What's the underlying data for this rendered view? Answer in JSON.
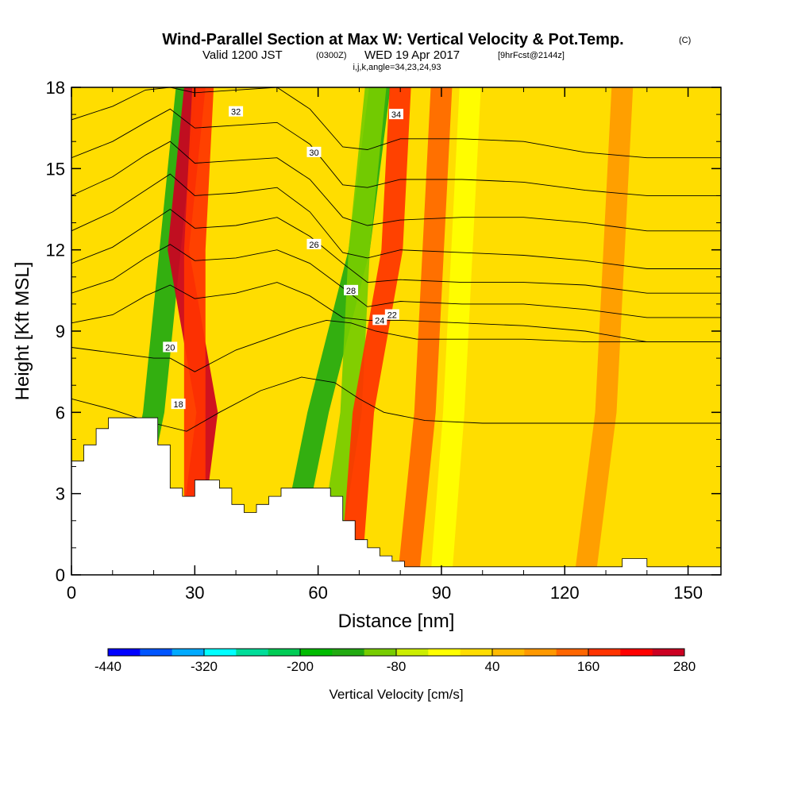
{
  "header": {
    "title": "Wind-Parallel Section at Max W: Vertical Velocity & Pot.Temp.",
    "copyright": "(C)",
    "valid_prefix": "Valid 1200 JST",
    "valid_utc": "(0300Z)",
    "valid_date": "WED 19 Apr 2017",
    "forecast": "[9hrFcst@2144z]",
    "indices": "i,j,k,angle=34,23,24,93"
  },
  "chart_data": {
    "type": "contour",
    "xlabel": "Distance [nm]",
    "ylabel": "Height [Kft MSL]",
    "xlim": [
      0,
      158
    ],
    "ylim": [
      0,
      18
    ],
    "x_ticks": [
      0,
      30,
      60,
      90,
      120,
      150
    ],
    "y_ticks": [
      0,
      3,
      6,
      9,
      12,
      15,
      18
    ],
    "colorbar": {
      "title": "Vertical Velocity [cm/s]",
      "min": -440,
      "step": 40,
      "labels": [
        "-440",
        "-320",
        "-200",
        "-80",
        "40",
        "160",
        "280"
      ],
      "colors": [
        "#0000ff",
        "#0055ff",
        "#00aaff",
        "#00ffff",
        "#00dd99",
        "#00cc55",
        "#00bb00",
        "#22aa11",
        "#77cc00",
        "#ccee00",
        "#ffff00",
        "#ffdd00",
        "#ffbb00",
        "#ff9900",
        "#ff6600",
        "#ff3300",
        "#ff0000",
        "#cc0022",
        "#aa0044",
        "#880066",
        "#660088"
      ]
    },
    "background_velocity": 20,
    "velocity_bands": [
      {
        "x": [
          12,
          20,
          24,
          28
        ],
        "velocity": -140
      },
      {
        "x": [
          28,
          33,
          26,
          30
        ],
        "velocity": 260
      },
      {
        "x": [
          30,
          30,
          30,
          32
        ],
        "velocity": 160
      },
      {
        "x": [
          52,
          60,
          70,
          75
        ],
        "velocity": -140
      },
      {
        "x": [
          62,
          68,
          70,
          74
        ],
        "velocity": -100
      },
      {
        "x": [
          68,
          71,
          78,
          80
        ],
        "velocity": 180
      },
      {
        "x": [
          82,
          86,
          88,
          90
        ],
        "velocity": 120
      },
      {
        "x": [
          90,
          93,
          95,
          97
        ],
        "velocity": -40
      },
      {
        "x": [
          125,
          130,
          132,
          134
        ],
        "velocity": 80
      }
    ],
    "terrain": {
      "x": [
        0,
        3,
        3,
        6,
        6,
        9,
        9,
        12,
        12,
        15,
        15,
        18,
        18,
        21,
        21,
        24,
        24,
        27,
        27,
        30,
        30,
        33,
        33,
        36,
        36,
        39,
        39,
        42,
        42,
        45,
        45,
        48,
        48,
        51,
        51,
        54,
        54,
        57,
        57,
        60,
        60,
        63,
        63,
        66,
        66,
        69,
        69,
        72,
        72,
        75,
        75,
        78,
        78,
        81,
        81,
        84,
        84,
        87,
        87,
        90,
        90,
        134,
        134,
        140,
        140,
        158
      ],
      "y": [
        4.2,
        4.2,
        4.8,
        4.8,
        5.4,
        5.4,
        5.8,
        5.8,
        5.8,
        5.8,
        5.8,
        5.8,
        5.8,
        5.8,
        4.8,
        4.8,
        3.2,
        3.2,
        2.9,
        2.9,
        3.5,
        3.5,
        3.5,
        3.5,
        3.2,
        3.2,
        2.6,
        2.6,
        2.3,
        2.3,
        2.6,
        2.6,
        2.9,
        2.9,
        3.2,
        3.2,
        3.2,
        3.2,
        3.2,
        3.2,
        3.2,
        3.2,
        2.9,
        2.9,
        2.0,
        2.0,
        1.3,
        1.3,
        1.0,
        1.0,
        0.7,
        0.7,
        0.5,
        0.5,
        0.3,
        0.3,
        0.3,
        0.3,
        0.3,
        0.3,
        0.3,
        0.3,
        0.6,
        0.6,
        0.3,
        0.3
      ]
    },
    "theta_contours": [
      {
        "x": [
          0,
          10,
          20,
          28,
          36,
          46,
          56,
          64,
          70,
          76,
          86,
          100,
          115,
          130,
          145,
          158
        ],
        "y": [
          6.5,
          6.1,
          5.6,
          5.3,
          6.0,
          6.8,
          7.3,
          7.1,
          6.5,
          6.0,
          5.7,
          5.6,
          5.6,
          5.6,
          5.6,
          5.6
        ],
        "label": "18",
        "label_at": [
          26,
          6.3
        ]
      },
      {
        "x": [
          0,
          10,
          20,
          24,
          30,
          40,
          55,
          62,
          68,
          74,
          84,
          100,
          110,
          125,
          140,
          158
        ],
        "y": [
          8.4,
          8.2,
          8.0,
          8.0,
          7.5,
          8.3,
          9.1,
          9.4,
          9.3,
          9.0,
          8.7,
          8.7,
          8.7,
          8.6,
          8.6,
          8.6
        ],
        "label": "20",
        "label_at": [
          24,
          8.4
        ]
      },
      {
        "x": [
          0,
          10,
          18,
          24,
          30,
          40,
          50,
          58,
          66,
          72,
          80,
          95,
          110,
          125,
          140,
          158
        ],
        "y": [
          9.3,
          9.6,
          10.3,
          10.7,
          10.2,
          10.4,
          10.8,
          10.3,
          9.5,
          9.4,
          9.4,
          9.3,
          9.2,
          9.0,
          8.6,
          8.6
        ],
        "label": "22",
        "label_at": [
          78,
          9.6
        ]
      },
      {
        "x": [
          0,
          10,
          18,
          24,
          30,
          40,
          50,
          58,
          66,
          72,
          80,
          95,
          110,
          125,
          140,
          158
        ],
        "y": [
          10.4,
          10.9,
          11.7,
          12.2,
          11.6,
          11.7,
          12.0,
          11.5,
          10.6,
          9.9,
          10.1,
          10.0,
          10.0,
          9.8,
          9.5,
          9.5
        ],
        "label": "24",
        "label_at": [
          75,
          9.4
        ]
      },
      {
        "x": [
          0,
          10,
          18,
          24,
          30,
          40,
          50,
          58,
          66,
          72,
          80,
          95,
          110,
          125,
          140,
          158
        ],
        "y": [
          11.5,
          12.1,
          12.9,
          13.5,
          12.8,
          12.9,
          13.2,
          12.5,
          11.5,
          10.8,
          10.9,
          10.8,
          10.8,
          10.7,
          10.4,
          10.4
        ],
        "label": "26",
        "label_at": [
          59,
          12.2
        ]
      },
      {
        "x": [
          0,
          10,
          18,
          24,
          30,
          40,
          50,
          58,
          66,
          72,
          80,
          95,
          110,
          125,
          140,
          158
        ],
        "y": [
          12.7,
          13.4,
          14.2,
          14.8,
          14.0,
          14.1,
          14.3,
          13.4,
          11.9,
          11.7,
          12.0,
          11.9,
          11.8,
          11.6,
          11.3,
          11.3
        ],
        "label": "28",
        "label_at": [
          68,
          10.5
        ]
      },
      {
        "x": [
          0,
          10,
          18,
          24,
          30,
          40,
          50,
          58,
          66,
          72,
          80,
          95,
          110,
          125,
          140,
          158
        ],
        "y": [
          14.0,
          14.7,
          15.5,
          16.0,
          15.2,
          15.3,
          15.4,
          14.6,
          13.2,
          12.9,
          13.1,
          13.2,
          13.2,
          13.0,
          12.7,
          12.7
        ],
        "label": "30",
        "label_at": [
          59,
          15.6
        ]
      },
      {
        "x": [
          0,
          10,
          18,
          24,
          30,
          40,
          50,
          58,
          66,
          72,
          80,
          95,
          110,
          125,
          140,
          158
        ],
        "y": [
          15.4,
          16.0,
          16.7,
          17.2,
          16.5,
          16.6,
          16.7,
          15.9,
          14.4,
          14.3,
          14.6,
          14.6,
          14.5,
          14.2,
          14.0,
          14.0
        ],
        "label": "32",
        "label_at": [
          40,
          17.1
        ]
      },
      {
        "x": [
          0,
          10,
          18,
          24,
          30,
          40,
          50,
          58,
          66,
          72,
          80,
          95,
          110,
          125,
          140,
          158
        ],
        "y": [
          16.8,
          17.3,
          17.9,
          18.0,
          17.8,
          17.9,
          18.0,
          17.2,
          15.8,
          15.7,
          16.1,
          16.1,
          16.0,
          15.6,
          15.4,
          15.4
        ],
        "label": "34",
        "label_at": [
          79,
          17.0
        ]
      }
    ]
  }
}
